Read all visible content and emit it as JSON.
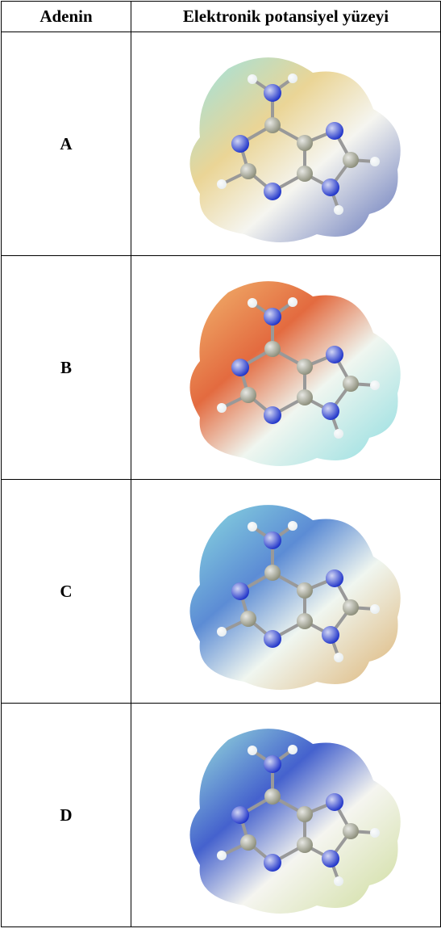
{
  "table": {
    "header": [
      "Adenin",
      "Elektronik potansiyel yüzeyi"
    ],
    "rows": [
      [
        "A"
      ],
      [
        "B"
      ],
      [
        "C"
      ],
      [
        "D"
      ]
    ]
  }
}
